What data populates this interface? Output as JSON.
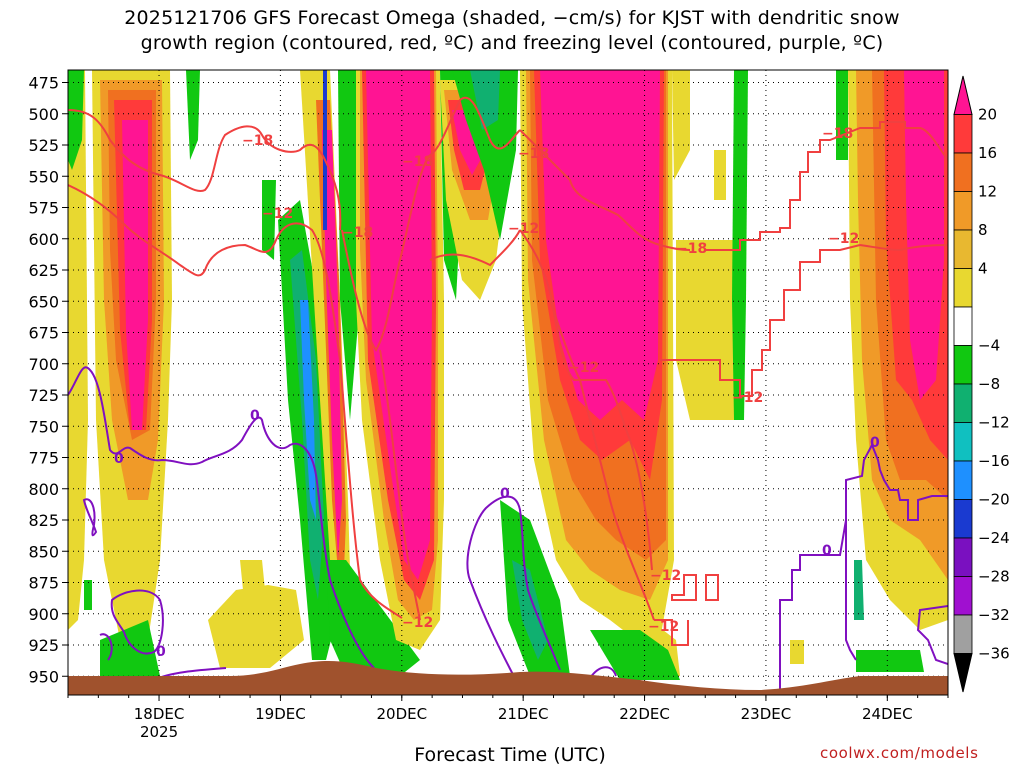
{
  "title_line1": "2025121706 GFS Forecast Omega (shaded, −cm/s) for KJST with dendritic snow",
  "title_line2": "growth region (contoured, red, ºC) and freezing level (contoured, purple, ºC)",
  "credit": "coolwx.com/models",
  "chart_data": {
    "type": "heatmap",
    "title": "2025121706 GFS Forecast Omega (shaded, −cm/s) for KJST with dendritic snow growth region (contoured, red, ºC) and freezing level (contoured, purple, ºC)",
    "xlabel": "Forecast Time (UTC)",
    "ylabel": "",
    "x_range_hours": [
      0,
      174
    ],
    "y_range_hpa": [
      465,
      965
    ],
    "y_ticks": [
      "475",
      "500",
      "525",
      "550",
      "575",
      "600",
      "625",
      "650",
      "675",
      "700",
      "725",
      "750",
      "775",
      "800",
      "825",
      "850",
      "875",
      "900",
      "925",
      "950"
    ],
    "y_tick_values": [
      475,
      500,
      525,
      550,
      575,
      600,
      625,
      650,
      675,
      700,
      725,
      750,
      775,
      800,
      825,
      850,
      875,
      900,
      925,
      950
    ],
    "x_ticks": [
      {
        "label": "18DEC",
        "sublabel": "2025",
        "hour": 18
      },
      {
        "label": "19DEC",
        "sublabel": "",
        "hour": 42
      },
      {
        "label": "20DEC",
        "sublabel": "",
        "hour": 66
      },
      {
        "label": "21DEC",
        "sublabel": "",
        "hour": 90
      },
      {
        "label": "22DEC",
        "sublabel": "",
        "hour": 114
      },
      {
        "label": "23DEC",
        "sublabel": "",
        "hour": 138
      },
      {
        "label": "24DEC",
        "sublabel": "",
        "hour": 162
      }
    ],
    "grid": true,
    "colorbar": {
      "labels": [
        "20",
        "16",
        "12",
        "8",
        "4",
        "−4",
        "−8",
        "−12",
        "−16",
        "−20",
        "−24",
        "−28",
        "−32",
        "−36"
      ],
      "colors": [
        "#ff1493",
        "#ff3a3a",
        "#f07020",
        "#f09a28",
        "#e8b830",
        "#e8d830",
        "#ffffff",
        "#11c811",
        "#10b070",
        "#10c0c0",
        "#1e90ff",
        "#1a3ad0",
        "#7a10c0",
        "#a010d0",
        "#a0a0a0",
        "#000000"
      ]
    },
    "omega_columns": [
      {
        "x_hours": [
          10,
          17
        ],
        "top_hpa": 470,
        "bottom_hpa": 720,
        "value": 20
      },
      {
        "x_hours": [
          58,
          66
        ],
        "top_hpa": 470,
        "bottom_hpa": 845,
        "value": 20
      },
      {
        "x_hours": [
          95,
          114
        ],
        "top_hpa": 470,
        "bottom_hpa": 760,
        "value": 20
      },
      {
        "x_hours": [
          114,
          120
        ],
        "top_hpa": 470,
        "bottom_hpa": 655,
        "value": 20
      },
      {
        "x_hours": [
          165,
          174
        ],
        "top_hpa": 470,
        "bottom_hpa": 780,
        "value": 16
      }
    ],
    "contour_labels": {
      "snow_growth_red": [
        "−18",
        "−12",
        "−18",
        "−18",
        "−12",
        "−18",
        "−12",
        "−18",
        "−12",
        "−12",
        "−12",
        "−12",
        "−18",
        "−12"
      ],
      "freezing_purple": [
        "0",
        "0",
        "0",
        "0",
        "0"
      ]
    }
  }
}
